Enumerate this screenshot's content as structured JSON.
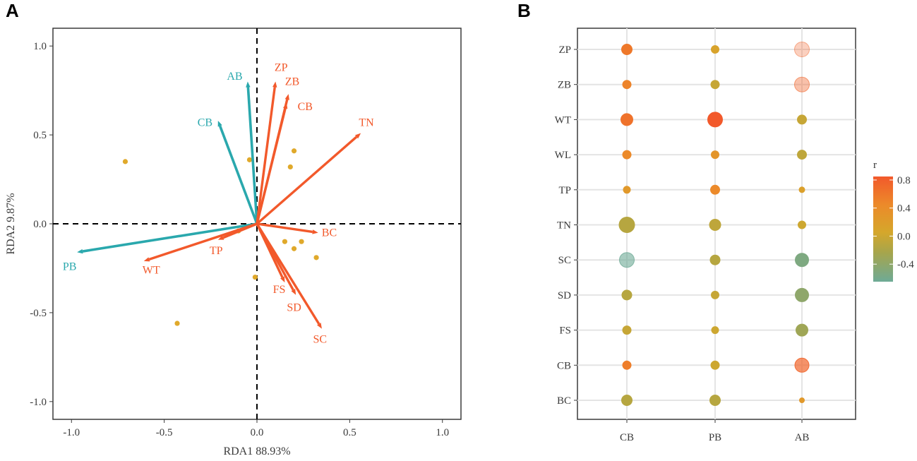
{
  "colors": {
    "explained": "#2aa8ad",
    "explanatory": "#f2592b",
    "sample": "#e0a92b",
    "frame": "#3a3a3a",
    "grid": "#e4e4e4"
  },
  "chart_data": [
    {
      "panel": "A",
      "type": "scatter",
      "title": "",
      "xlabel": "RDA1 88.93%",
      "ylabel": "RDA2 9.87%",
      "xlim": [
        -1.1,
        1.1
      ],
      "ylim": [
        -1.1,
        1.1
      ],
      "xticks": [
        -1.0,
        -0.5,
        0.0,
        0.5,
        1.0
      ],
      "xtick_labels": [
        "-1.0",
        "-0.5",
        "0.0",
        "0.5",
        "1.0"
      ],
      "yticks": [
        1.0,
        0.5,
        0.0,
        -0.5,
        -1.0
      ],
      "ytick_labels": [
        "1.0",
        "0.5",
        "0.0",
        "-0.5",
        "-1.0"
      ],
      "reference_lines": [
        0,
        0
      ],
      "response_vectors": [
        {
          "label": "AB",
          "x": -0.05,
          "y": 0.8,
          "lx": -0.12,
          "ly": 0.83
        },
        {
          "label": "CB",
          "x": -0.21,
          "y": 0.58,
          "lx": -0.28,
          "ly": 0.57
        },
        {
          "label": "PB",
          "x": -0.97,
          "y": -0.16,
          "lx": -1.01,
          "ly": -0.24
        }
      ],
      "explanatory_vectors": [
        {
          "label": "ZP",
          "x": 0.1,
          "y": 0.8,
          "lx": 0.13,
          "ly": 0.88
        },
        {
          "label": "ZB",
          "x": 0.17,
          "y": 0.73,
          "lx": 0.19,
          "ly": 0.8
        },
        {
          "label": "CB",
          "x": 0.16,
          "y": 0.68,
          "lx": 0.26,
          "ly": 0.66
        },
        {
          "label": "TN",
          "x": 0.56,
          "y": 0.51,
          "lx": 0.59,
          "ly": 0.57
        },
        {
          "label": "BC",
          "x": 0.33,
          "y": -0.05,
          "lx": 0.39,
          "ly": -0.05
        },
        {
          "label": "TP",
          "x": -0.21,
          "y": -0.09,
          "lx": -0.22,
          "ly": -0.15
        },
        {
          "label": "WT",
          "x": -0.61,
          "y": -0.21,
          "lx": -0.57,
          "ly": -0.26
        },
        {
          "label": "FS",
          "x": 0.15,
          "y": -0.33,
          "lx": 0.12,
          "ly": -0.37
        },
        {
          "label": "SD",
          "x": 0.21,
          "y": -0.4,
          "lx": 0.2,
          "ly": -0.47
        },
        {
          "label": "SC",
          "x": 0.35,
          "y": -0.59,
          "lx": 0.34,
          "ly": -0.65
        }
      ],
      "sample_points": [
        {
          "x": -0.71,
          "y": 0.35
        },
        {
          "x": -0.04,
          "y": 0.36
        },
        {
          "x": 0.2,
          "y": 0.41
        },
        {
          "x": 0.18,
          "y": 0.32
        },
        {
          "x": -0.1,
          "y": -0.04
        },
        {
          "x": 0.15,
          "y": -0.1
        },
        {
          "x": 0.24,
          "y": -0.1
        },
        {
          "x": 0.2,
          "y": -0.14
        },
        {
          "x": 0.32,
          "y": -0.19
        },
        {
          "x": -0.01,
          "y": -0.3
        },
        {
          "x": -0.43,
          "y": -0.56
        }
      ]
    },
    {
      "panel": "B",
      "type": "bubble",
      "title": "",
      "xlabel": "",
      "ylabel": "",
      "x_categories": [
        "CB",
        "PB",
        "AB"
      ],
      "y_categories": [
        "ZP",
        "ZB",
        "WT",
        "WL",
        "TP",
        "TN",
        "SC",
        "SD",
        "FS",
        "CB",
        "BC"
      ],
      "legend": {
        "title": "r",
        "ticks": [
          0.8,
          0.4,
          0.0,
          -0.4
        ],
        "tick_labels": [
          "0.8",
          "0.4",
          "0.0",
          "-0.4"
        ],
        "range": [
          -0.65,
          0.85
        ],
        "position": "right"
      },
      "cells": [
        {
          "row": "ZP",
          "col": "CB",
          "r": 0.55,
          "size": 7.5,
          "alpha": 1.0
        },
        {
          "row": "ZP",
          "col": "PB",
          "r": 0.05,
          "size": 5.5,
          "alpha": 1.0
        },
        {
          "row": "ZP",
          "col": "AB",
          "r": 0.7,
          "size": 10.5,
          "alpha": 0.3
        },
        {
          "row": "ZB",
          "col": "CB",
          "r": 0.45,
          "size": 6.0,
          "alpha": 1.0
        },
        {
          "row": "ZB",
          "col": "PB",
          "r": -0.1,
          "size": 6.0,
          "alpha": 1.0
        },
        {
          "row": "ZB",
          "col": "AB",
          "r": 0.7,
          "size": 10.5,
          "alpha": 0.4
        },
        {
          "row": "WT",
          "col": "CB",
          "r": 0.6,
          "size": 8.5,
          "alpha": 1.0
        },
        {
          "row": "WT",
          "col": "PB",
          "r": 0.8,
          "size": 10.5,
          "alpha": 1.0
        },
        {
          "row": "WT",
          "col": "AB",
          "r": -0.1,
          "size": 6.5,
          "alpha": 1.0
        },
        {
          "row": "WL",
          "col": "CB",
          "r": 0.4,
          "size": 6.0,
          "alpha": 1.0
        },
        {
          "row": "WL",
          "col": "PB",
          "r": 0.25,
          "size": 5.5,
          "alpha": 1.0
        },
        {
          "row": "WL",
          "col": "AB",
          "r": -0.15,
          "size": 6.5,
          "alpha": 1.0
        },
        {
          "row": "TP",
          "col": "CB",
          "r": 0.2,
          "size": 5.0,
          "alpha": 1.0
        },
        {
          "row": "TP",
          "col": "PB",
          "r": 0.4,
          "size": 6.5,
          "alpha": 1.0
        },
        {
          "row": "TP",
          "col": "AB",
          "r": 0.1,
          "size": 4.0,
          "alpha": 1.0
        },
        {
          "row": "TN",
          "col": "CB",
          "r": -0.2,
          "size": 11.0,
          "alpha": 1.0
        },
        {
          "row": "TN",
          "col": "PB",
          "r": -0.15,
          "size": 8.0,
          "alpha": 1.0
        },
        {
          "row": "TN",
          "col": "AB",
          "r": -0.05,
          "size": 5.5,
          "alpha": 1.0
        },
        {
          "row": "SC",
          "col": "CB",
          "r": -0.65,
          "size": 10.5,
          "alpha": 0.6
        },
        {
          "row": "SC",
          "col": "PB",
          "r": -0.2,
          "size": 7.0,
          "alpha": 1.0
        },
        {
          "row": "SC",
          "col": "AB",
          "r": -0.55,
          "size": 9.5,
          "alpha": 1.0
        },
        {
          "row": "SD",
          "col": "CB",
          "r": -0.2,
          "size": 7.0,
          "alpha": 1.0
        },
        {
          "row": "SD",
          "col": "PB",
          "r": -0.1,
          "size": 5.5,
          "alpha": 1.0
        },
        {
          "row": "SD",
          "col": "AB",
          "r": -0.45,
          "size": 9.5,
          "alpha": 1.0
        },
        {
          "row": "FS",
          "col": "CB",
          "r": -0.1,
          "size": 6.0,
          "alpha": 1.0
        },
        {
          "row": "FS",
          "col": "PB",
          "r": -0.05,
          "size": 5.0,
          "alpha": 1.0
        },
        {
          "row": "FS",
          "col": "AB",
          "r": -0.35,
          "size": 8.5,
          "alpha": 1.0
        },
        {
          "row": "CB",
          "col": "CB",
          "r": 0.5,
          "size": 6.0,
          "alpha": 1.0
        },
        {
          "row": "CB",
          "col": "PB",
          "r": -0.05,
          "size": 6.0,
          "alpha": 1.0
        },
        {
          "row": "CB",
          "col": "AB",
          "r": 0.7,
          "size": 10.0,
          "alpha": 0.7
        },
        {
          "row": "BC",
          "col": "CB",
          "r": -0.2,
          "size": 7.5,
          "alpha": 1.0
        },
        {
          "row": "BC",
          "col": "PB",
          "r": -0.2,
          "size": 7.5,
          "alpha": 1.0
        },
        {
          "row": "BC",
          "col": "AB",
          "r": 0.2,
          "size": 3.5,
          "alpha": 1.0
        }
      ]
    }
  ],
  "panels": {
    "a_letter": "A",
    "b_letter": "B"
  }
}
